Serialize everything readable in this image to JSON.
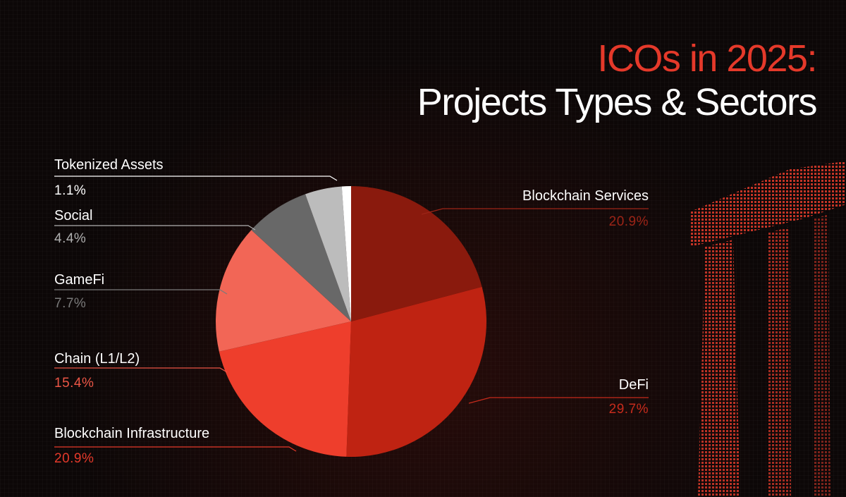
{
  "title": {
    "line1": "ICOs in 2025:",
    "line2": "Projects Types & Sectors"
  },
  "colors": {
    "accent": "#e5392a",
    "background": "#0c0707"
  },
  "chart_data": {
    "type": "pie",
    "title": "ICOs in 2025: Projects Types & Sectors",
    "start": "12 o'clock, clockwise",
    "slices": [
      {
        "label": "Blockchain Services",
        "value": 20.9,
        "display": "20.9%",
        "color": "#8a1a0d",
        "labelColor": "#9d2417"
      },
      {
        "label": "DeFi",
        "value": 29.7,
        "display": "29.7%",
        "color": "#bf2312",
        "labelColor": "#c62b1c"
      },
      {
        "label": "Blockchain Infrastructure",
        "value": 20.9,
        "display": "20.9%",
        "color": "#ee3e2c",
        "labelColor": "#e5392a"
      },
      {
        "label": "Chain (L1/L2)",
        "value": 15.4,
        "display": "15.4%",
        "color": "#f26656",
        "labelColor": "#ec5646"
      },
      {
        "label": "GameFi",
        "value": 7.7,
        "display": "7.7%",
        "color": "#686868",
        "labelColor": "#7a7a7a"
      },
      {
        "label": "Social",
        "value": 4.4,
        "display": "4.4%",
        "color": "#bcbcbc",
        "labelColor": "#b0b0b0"
      },
      {
        "label": "Tokenized Assets",
        "value": 1.1,
        "display": "1.1%",
        "color": "#ffffff",
        "labelColor": "#ffffff"
      }
    ]
  }
}
